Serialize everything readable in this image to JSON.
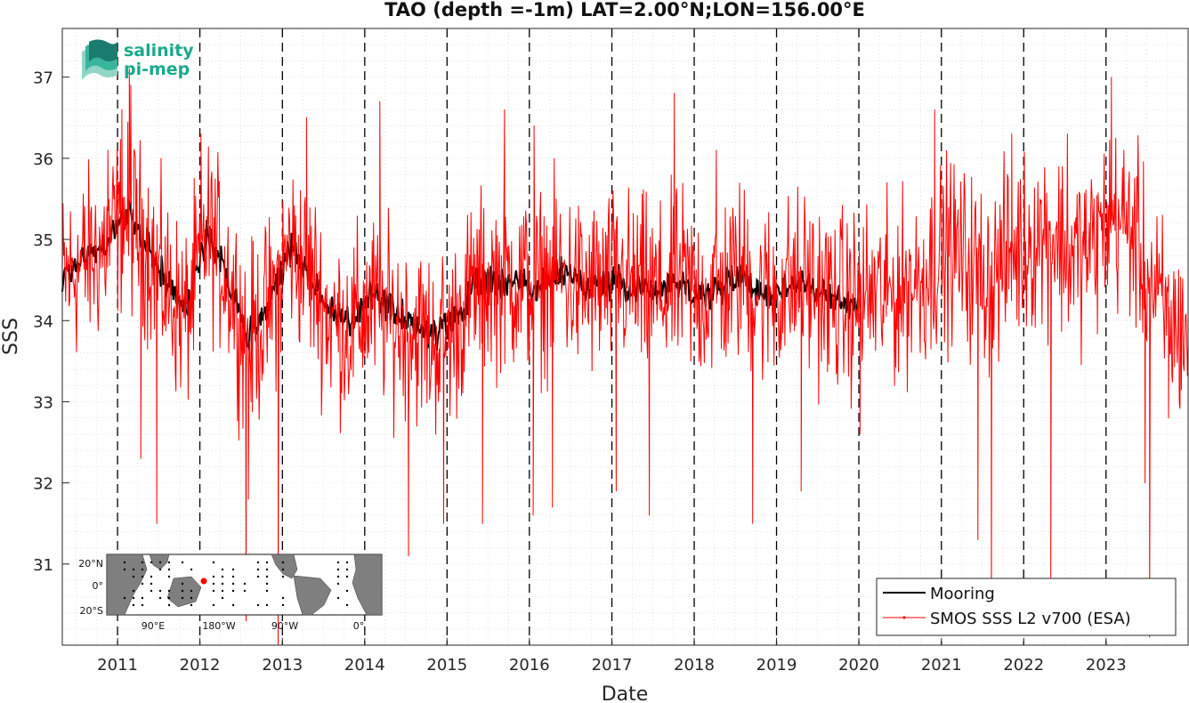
{
  "chart_data": {
    "type": "line",
    "title": "TAO (depth =-1m) LAT=2.00°N;LON=156.00°E",
    "xlabel": "Date",
    "ylabel": "SSS",
    "xlim": [
      "2010-05-01",
      "2023-12-31"
    ],
    "ylim": [
      30,
      37.6
    ],
    "x_tick_labels": [
      "2011",
      "2012",
      "2013",
      "2014",
      "2015",
      "2016",
      "2017",
      "2018",
      "2019",
      "2020",
      "2021",
      "2022",
      "2023"
    ],
    "y_tick_labels": [
      "31",
      "32",
      "33",
      "34",
      "35",
      "36",
      "37"
    ],
    "y_ticks": [
      31,
      32,
      33,
      34,
      35,
      36,
      37
    ],
    "year_separators": "dashed vertical lines at each January 1",
    "grid": "dotted minor grid",
    "legend_location": "bottom-right",
    "series": [
      {
        "name": "Mooring",
        "color": "#000000",
        "dates": [
          "2010-05",
          "2010-08",
          "2010-11",
          "2011-02",
          "2011-05",
          "2011-08",
          "2011-11",
          "2012-02",
          "2012-05",
          "2012-08",
          "2012-11",
          "2013-02",
          "2013-05",
          "2013-08",
          "2013-11",
          "2014-02",
          "2014-05",
          "2014-08",
          "2014-11",
          "2015-02",
          "2015-05",
          "2015-08",
          "2015-11",
          "2016-02",
          "2016-05",
          "2016-08",
          "2016-11",
          "2017-02",
          "2017-05",
          "2017-08",
          "2017-11",
          "2018-02",
          "2018-05",
          "2018-08",
          "2018-11",
          "2019-02",
          "2019-05",
          "2019-08",
          "2019-11"
        ],
        "values": [
          34.5,
          34.8,
          34.9,
          35.3,
          35.0,
          34.5,
          34.1,
          35.1,
          34.6,
          33.8,
          34.2,
          34.9,
          34.6,
          34.1,
          34.0,
          34.3,
          34.1,
          34.0,
          33.8,
          34.0,
          34.4,
          34.5,
          34.5,
          34.4,
          34.6,
          34.5,
          34.4,
          34.5,
          34.4,
          34.4,
          34.5,
          34.3,
          34.4,
          34.6,
          34.3,
          34.4,
          34.5,
          34.3,
          34.2
        ]
      },
      {
        "name": "SMOS SSS L2 v700 (ESA)",
        "color": "#ff0000",
        "dates": [
          "2010-05",
          "2010-08",
          "2010-11",
          "2011-02",
          "2011-05",
          "2011-08",
          "2011-11",
          "2012-02",
          "2012-05",
          "2012-08",
          "2012-11",
          "2013-02",
          "2013-05",
          "2013-08",
          "2013-11",
          "2014-02",
          "2014-05",
          "2014-08",
          "2014-11",
          "2015-02",
          "2015-05",
          "2015-08",
          "2015-11",
          "2016-02",
          "2016-05",
          "2016-08",
          "2016-11",
          "2017-02",
          "2017-05",
          "2017-08",
          "2017-11",
          "2018-02",
          "2018-05",
          "2018-08",
          "2018-11",
          "2019-02",
          "2019-05",
          "2019-08",
          "2019-11",
          "2020-02",
          "2020-05",
          "2020-08",
          "2020-11",
          "2021-02",
          "2021-05",
          "2021-08",
          "2021-11",
          "2022-02",
          "2022-05",
          "2022-08",
          "2022-11",
          "2023-02",
          "2023-05",
          "2023-08",
          "2023-11"
        ],
        "values": [
          34.5,
          34.7,
          34.9,
          35.3,
          35.0,
          34.4,
          34.0,
          35.1,
          34.6,
          33.7,
          34.1,
          34.9,
          34.6,
          34.0,
          33.9,
          34.2,
          34.0,
          33.9,
          33.7,
          33.9,
          34.4,
          34.5,
          34.5,
          34.4,
          34.6,
          34.4,
          34.4,
          34.5,
          34.4,
          34.3,
          34.5,
          34.3,
          34.4,
          34.6,
          34.3,
          34.4,
          34.5,
          34.3,
          34.2,
          34.3,
          34.3,
          34.4,
          34.6,
          34.9,
          34.7,
          34.5,
          34.8,
          35.0,
          35.1,
          34.8,
          34.9,
          35.3,
          35.1,
          34.3,
          33.9
        ],
        "noise_amplitude": 0.55,
        "spikes": [
          {
            "date": "2010-11",
            "value": 36.1
          },
          {
            "date": "2011-01",
            "value": 36.6
          },
          {
            "date": "2011-02",
            "value": 37.1
          },
          {
            "date": "2011-03",
            "value": 36.9
          },
          {
            "date": "2011-04",
            "value": 32.3
          },
          {
            "date": "2011-06",
            "value": 31.5
          },
          {
            "date": "2012-01",
            "value": 36.3
          },
          {
            "date": "2012-07",
            "value": 30.3
          },
          {
            "date": "2012-08",
            "value": 31.8
          },
          {
            "date": "2012-12",
            "value": 30.0
          },
          {
            "date": "2013-04",
            "value": 36.5
          },
          {
            "date": "2014-03",
            "value": 36.7
          },
          {
            "date": "2014-07",
            "value": 31.1
          },
          {
            "date": "2014-12",
            "value": 31.5
          },
          {
            "date": "2015-06",
            "value": 31.5
          },
          {
            "date": "2015-09",
            "value": 36.6
          },
          {
            "date": "2016-01",
            "value": 31.6
          },
          {
            "date": "2016-01",
            "value": 36.4
          },
          {
            "date": "2016-04",
            "value": 31.7
          },
          {
            "date": "2017-01",
            "value": 31.9
          },
          {
            "date": "2017-06",
            "value": 31.6
          },
          {
            "date": "2017-10",
            "value": 36.8
          },
          {
            "date": "2018-04",
            "value": 36.1
          },
          {
            "date": "2018-09",
            "value": 31.5
          },
          {
            "date": "2019-04",
            "value": 31.9
          },
          {
            "date": "2020-01",
            "value": 32.6
          },
          {
            "date": "2020-12",
            "value": 36.6
          },
          {
            "date": "2021-06",
            "value": 31.3
          },
          {
            "date": "2021-08",
            "value": 30.2
          },
          {
            "date": "2021-11",
            "value": 36.3
          },
          {
            "date": "2022-05",
            "value": 30.6
          },
          {
            "date": "2022-07",
            "value": 36.3
          },
          {
            "date": "2023-01",
            "value": 37.0
          },
          {
            "date": "2023-06",
            "value": 32.0
          },
          {
            "date": "2023-07",
            "value": 30.1
          },
          {
            "date": "2023-10",
            "value": 32.8
          }
        ]
      }
    ]
  },
  "logo": {
    "line1": "salinity",
    "line2": "pi-mep"
  },
  "inset_map": {
    "lat_labels": [
      "20°N",
      "0°",
      "20°S"
    ],
    "lon_labels": [
      "90°E",
      "180°W",
      "90°W",
      "0°"
    ],
    "land_color": "#7f7f7f",
    "ocean_color": "#ffffff",
    "station_color": "#ff0000"
  }
}
